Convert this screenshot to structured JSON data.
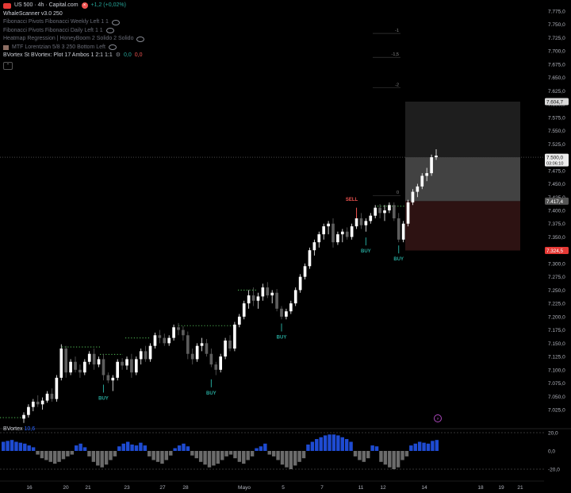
{
  "symbol": {
    "name": "US 500 · 4h · Capital.com",
    "change": "+1,2 (+0,02%)"
  },
  "indicators": [
    {
      "name": "WhaleScanner v3.0 250",
      "style": "bright"
    },
    {
      "name": "Fibonacci Pivots Fibonacci Weekly Left 1 1",
      "style": "dim",
      "eye": true
    },
    {
      "name": "Fibonacci Pivots Fibonacci Daily Left 1 1",
      "style": "dim",
      "eye": true
    },
    {
      "name": "Heatmap Regression | HoneyBoom 2 Solido 2 Solido",
      "style": "dim",
      "eye": true
    },
    {
      "name": "MTF Lorentzian 5/8 3 250 Bottom Left",
      "style": "dim",
      "eye": true,
      "icon": "mtf-icon"
    },
    {
      "name": "BVortex St BVortex: Plot 17 Ambos 1 2:1 1:1",
      "style": "bright",
      "values": [
        "0,0",
        "0,0"
      ]
    }
  ],
  "price_axis": [
    "7.775,0",
    "7.750,0",
    "7.725,0",
    "7.700,0",
    "7.675,0",
    "7.650,0",
    "7.625,0",
    "7.600,0",
    "7.575,0",
    "7.550,0",
    "7.525,0",
    "7.500,0",
    "7.475,0",
    "7.450,0",
    "7.425,0",
    "7.400,0",
    "7.375,0",
    "7.350,0",
    "7.325,0",
    "7.300,0",
    "7.275,0",
    "7.250,0",
    "7.225,0",
    "7.200,0",
    "7.175,0",
    "7.150,0",
    "7.125,0",
    "7.100,0",
    "7.075,0",
    "7.050,0",
    "7.025,0"
  ],
  "price_badges": {
    "tp": "7.604,7",
    "last": "7.500,0",
    "countdown": "03:06:10",
    "entry": "7.417,4",
    "sl": "7.324,5"
  },
  "fib_labels": [
    "-1",
    "-1,5",
    "-2",
    "0"
  ],
  "signals": {
    "buy": "BUY",
    "sell": "SELL"
  },
  "time_axis": [
    "16",
    "20",
    "21",
    "23",
    "27",
    "28",
    "Mayo",
    "5",
    "7",
    "11",
    "12",
    "14",
    "18",
    "19",
    "21"
  ],
  "bvortex": {
    "name": "BVortex",
    "value": "10,6",
    "axis": [
      "20,0",
      "0,0",
      "-20,0"
    ]
  },
  "colors": {
    "up": "#ffffff",
    "down": "#5d5d5d",
    "buy": "#26a69a",
    "sell": "#ef5350",
    "dots": "#4caf50",
    "hist_pos": "#1e4bd2",
    "hist_neg": "#6b6b6b"
  }
}
